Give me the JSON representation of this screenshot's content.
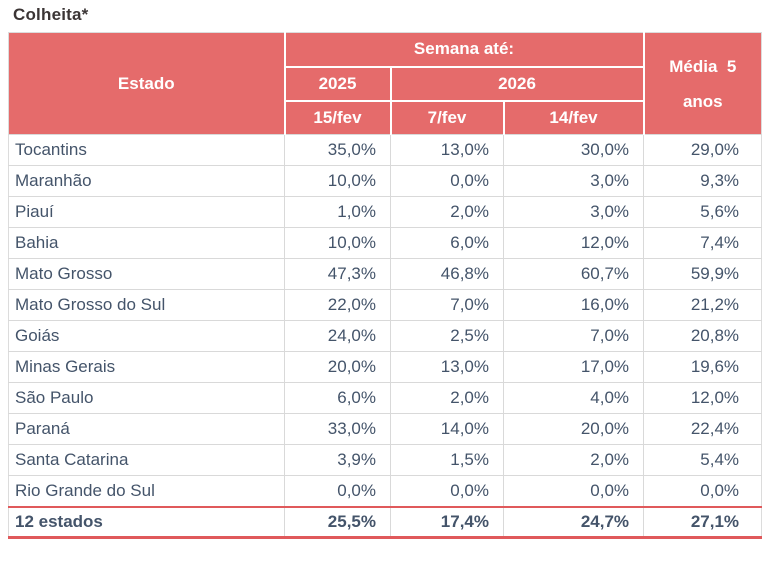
{
  "colors": {
    "header_bg": "#E56B6B",
    "header_text": "#FFFFFF",
    "body_text": "#44546A",
    "grid_line": "#D9D9D9",
    "total_border": "#E0595B",
    "title_text": "#3B3535"
  },
  "chart_data": {
    "type": "table",
    "title": "Colheita*",
    "header": {
      "estado": "Estado",
      "semana_ate": "Semana até:",
      "year_2025": "2025",
      "year_2026": "2026",
      "dates": {
        "d2025": "15/fev",
        "d2026_1": "7/fev",
        "d2026_2": "14/fev"
      },
      "media_line1": "Média  5",
      "media_line2": "anos"
    },
    "rows": [
      {
        "estado": "Tocantins",
        "values": [
          "35,0%",
          "13,0%",
          "30,0%",
          "29,0%"
        ]
      },
      {
        "estado": "Maranhão",
        "values": [
          "10,0%",
          "0,0%",
          "3,0%",
          "9,3%"
        ]
      },
      {
        "estado": "Piauí",
        "values": [
          "1,0%",
          "2,0%",
          "3,0%",
          "5,6%"
        ]
      },
      {
        "estado": "Bahia",
        "values": [
          "10,0%",
          "6,0%",
          "12,0%",
          "7,4%"
        ]
      },
      {
        "estado": "Mato Grosso",
        "values": [
          "47,3%",
          "46,8%",
          "60,7%",
          "59,9%"
        ]
      },
      {
        "estado": "Mato Grosso do Sul",
        "values": [
          "22,0%",
          "7,0%",
          "16,0%",
          "21,2%"
        ]
      },
      {
        "estado": "Goiás",
        "values": [
          "24,0%",
          "2,5%",
          "7,0%",
          "20,8%"
        ]
      },
      {
        "estado": "Minas Gerais",
        "values": [
          "20,0%",
          "13,0%",
          "17,0%",
          "19,6%"
        ]
      },
      {
        "estado": "São Paulo",
        "values": [
          "6,0%",
          "2,0%",
          "4,0%",
          "12,0%"
        ]
      },
      {
        "estado": "Paraná",
        "values": [
          "33,0%",
          "14,0%",
          "20,0%",
          "22,4%"
        ]
      },
      {
        "estado": "Santa Catarina",
        "values": [
          "3,9%",
          "1,5%",
          "2,0%",
          "5,4%"
        ]
      },
      {
        "estado": "Rio Grande do Sul",
        "values": [
          "0,0%",
          "0,0%",
          "0,0%",
          "0,0%"
        ]
      }
    ],
    "total": {
      "estado": "12 estados",
      "values": [
        "25,5%",
        "17,4%",
        "24,7%",
        "27,1%"
      ]
    }
  }
}
